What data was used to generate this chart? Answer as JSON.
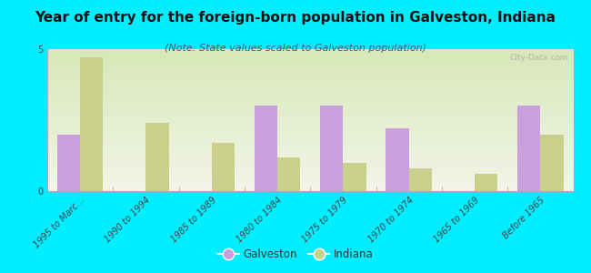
{
  "title": "Year of entry for the foreign-born population in Galveston, Indiana",
  "subtitle": "(Note: State values scaled to Galveston population)",
  "categories": [
    "1995 to Marc...",
    "1990 to 1994",
    "1985 to 1989",
    "1980 to 1984",
    "1975 to 1979",
    "1970 to 1974",
    "1965 to 1969",
    "Before 1965"
  ],
  "galveston": [
    2.0,
    0.0,
    0.0,
    3.0,
    3.0,
    2.2,
    0.0,
    3.0
  ],
  "indiana": [
    4.7,
    2.4,
    1.7,
    1.2,
    1.0,
    0.8,
    0.6,
    2.0
  ],
  "galveston_color": "#c9a0dc",
  "indiana_color": "#c8d08c",
  "background_color": "#00eeff",
  "ylim": [
    0,
    5
  ],
  "yticks": [
    0,
    5
  ],
  "bar_width": 0.35,
  "title_fontsize": 11,
  "subtitle_fontsize": 8,
  "tick_fontsize": 7,
  "legend_fontsize": 8.5,
  "watermark": "City-Data.com"
}
